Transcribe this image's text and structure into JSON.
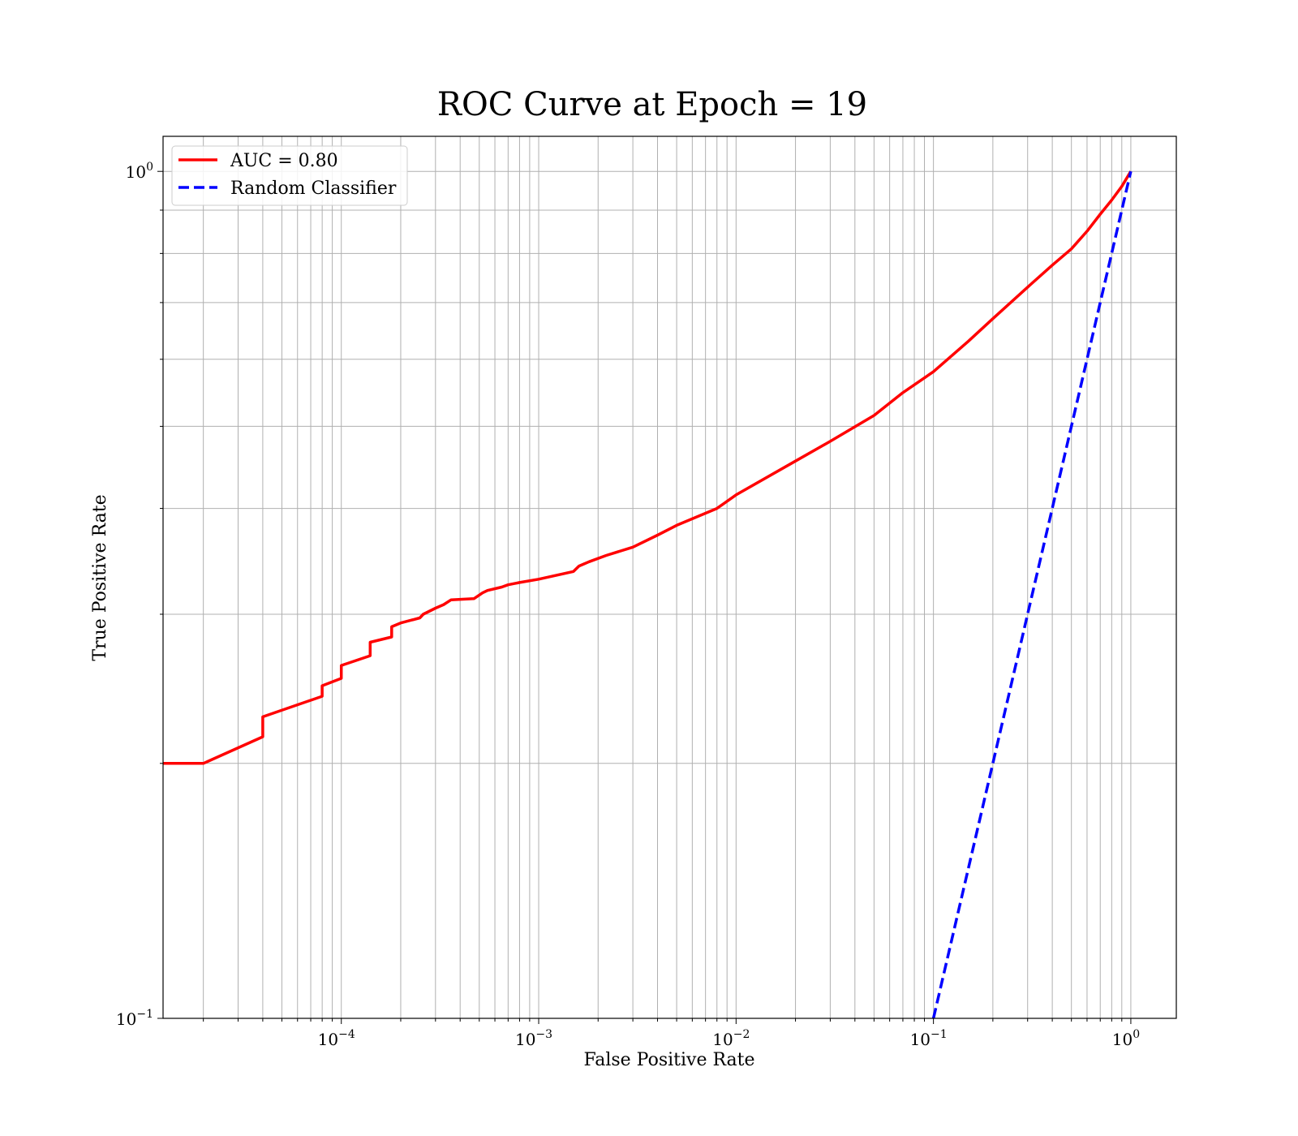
{
  "chart_data": {
    "type": "line",
    "title": "ROC Curve at Epoch = 19",
    "xlabel": "False Positive Rate",
    "ylabel": "True Positive Rate",
    "xscale": "log",
    "yscale": "log",
    "xlim": [
      1.25e-05,
      1.7
    ],
    "ylim": [
      0.1,
      1.1
    ],
    "grid": true,
    "grid_which": "both",
    "legend_position": "top-left",
    "x_ticks": [
      {
        "value": 0.0001,
        "base": "10",
        "exp": "−4"
      },
      {
        "value": 0.001,
        "base": "10",
        "exp": "−3"
      },
      {
        "value": 0.01,
        "base": "10",
        "exp": "−2"
      },
      {
        "value": 0.1,
        "base": "10",
        "exp": "−1"
      },
      {
        "value": 1,
        "base": "10",
        "exp": "0"
      }
    ],
    "y_ticks": [
      {
        "value": 0.1,
        "base": "10",
        "exp": "−1"
      },
      {
        "value": 1,
        "base": "10",
        "exp": "0"
      }
    ],
    "series": [
      {
        "name": "AUC = 0.80",
        "color": "#ff0000",
        "linestyle": "solid",
        "x": [
          1.25e-05,
          2e-05,
          4e-05,
          4e-05,
          8e-05,
          8e-05,
          0.0001,
          0.0001,
          0.00014,
          0.00014,
          0.00018,
          0.00018,
          0.0002,
          0.00025,
          0.00026,
          0.0003,
          0.00033,
          0.00036,
          0.00047,
          0.00052,
          0.00055,
          0.00065,
          0.0007,
          0.0008,
          0.001,
          0.0015,
          0.0016,
          0.0017,
          0.0018,
          0.0022,
          0.003,
          0.004,
          0.005,
          0.008,
          0.01,
          0.02,
          0.03,
          0.05,
          0.07,
          0.1,
          0.15,
          0.2,
          0.3,
          0.4,
          0.5,
          0.6,
          0.7,
          0.8,
          0.9,
          1.0
        ],
        "y": [
          0.2,
          0.2,
          0.215,
          0.227,
          0.24,
          0.247,
          0.252,
          0.261,
          0.268,
          0.278,
          0.282,
          0.29,
          0.293,
          0.297,
          0.3,
          0.305,
          0.308,
          0.312,
          0.313,
          0.318,
          0.32,
          0.323,
          0.325,
          0.327,
          0.33,
          0.337,
          0.342,
          0.344,
          0.346,
          0.352,
          0.36,
          0.372,
          0.382,
          0.4,
          0.415,
          0.455,
          0.48,
          0.515,
          0.548,
          0.58,
          0.63,
          0.67,
          0.73,
          0.775,
          0.81,
          0.85,
          0.89,
          0.925,
          0.96,
          1.0
        ]
      },
      {
        "name": "Random Classifier",
        "color": "#0000ff",
        "linestyle": "dashed",
        "x": [
          0.1,
          1.0
        ],
        "y": [
          0.1,
          1.0
        ]
      }
    ]
  }
}
